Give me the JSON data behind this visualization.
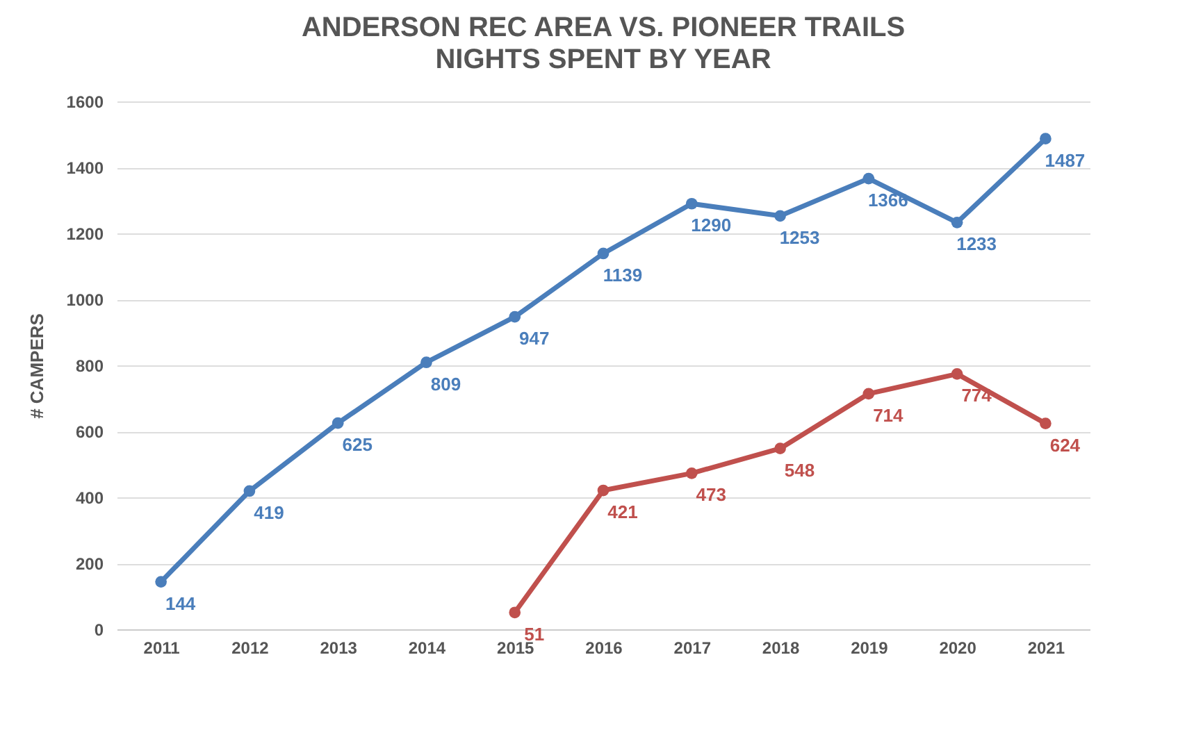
{
  "chart_data": {
    "type": "line",
    "title": "ANDERSON REC AREA VS. PIONEER TRAILS",
    "subtitle": "NIGHTS SPENT BY YEAR",
    "ylabel": "# CAMPERS",
    "categories": [
      "2011",
      "2012",
      "2013",
      "2014",
      "2015",
      "2016",
      "2017",
      "2018",
      "2019",
      "2020",
      "2021"
    ],
    "series": [
      {
        "color": "#4a7ebb",
        "values": [
          144,
          419,
          625,
          809,
          947,
          1139,
          1290,
          1253,
          1366,
          1233,
          1487
        ]
      },
      {
        "color": "#c0504d",
        "values": [
          null,
          null,
          null,
          null,
          51,
          421,
          473,
          548,
          714,
          774,
          624
        ]
      }
    ],
    "ylim": [
      0,
      1600
    ],
    "yticks": [
      0,
      200,
      400,
      600,
      800,
      1000,
      1200,
      1400,
      1600
    ],
    "grid": "y",
    "marker": "circle",
    "line_style": "solid",
    "data_labels": true,
    "legend": false
  }
}
